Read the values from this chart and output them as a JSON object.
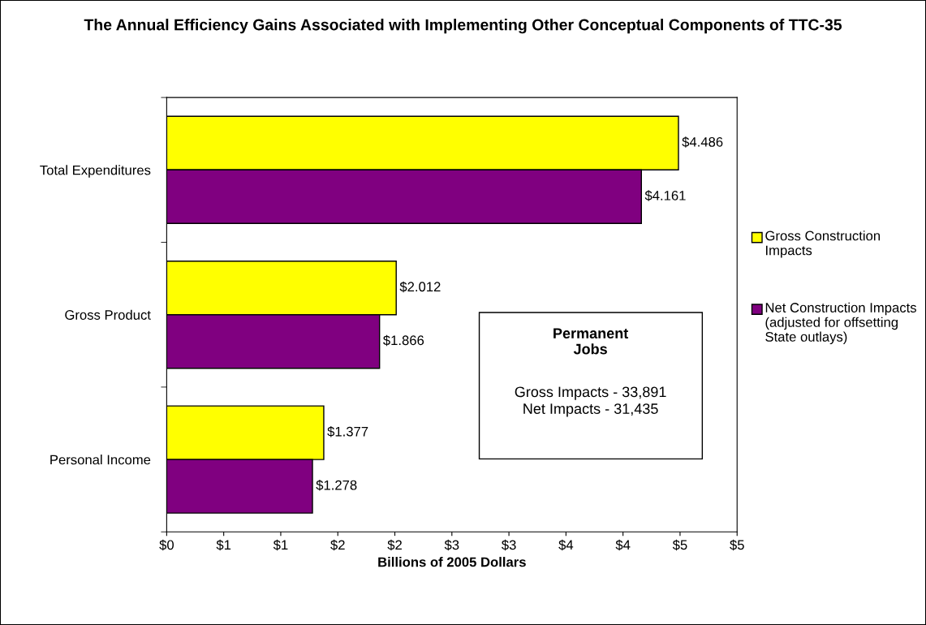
{
  "chart_data": {
    "type": "bar",
    "orientation": "horizontal",
    "title": "The Annual Efficiency Gains Associated with Implementing Other Conceptual Components of TTC-35",
    "xlabel": "Billions of 2005 Dollars",
    "categories": [
      "Total Expenditures",
      "Gross Product",
      "Personal Income"
    ],
    "series": [
      {
        "name": "Gross Construction Impacts",
        "color": "#ffff00",
        "values": [
          4.486,
          2.012,
          1.377
        ],
        "value_labels": [
          "$4.486",
          "$2.012",
          "$1.377"
        ]
      },
      {
        "name": "Net Construction Impacts (adjusted for offsetting State outlays)",
        "color": "#800080",
        "values": [
          4.161,
          1.866,
          1.278
        ],
        "value_labels": [
          "$4.161",
          "$1.866",
          "$1.278"
        ]
      }
    ],
    "xlim": [
      0,
      5
    ],
    "xticks": [
      {
        "value": 0,
        "label": "$0"
      },
      {
        "value": 0.5,
        "label": "$1"
      },
      {
        "value": 1,
        "label": "$1"
      },
      {
        "value": 1.5,
        "label": "$2"
      },
      {
        "value": 2,
        "label": "$2"
      },
      {
        "value": 2.5,
        "label": "$3"
      },
      {
        "value": 3,
        "label": "$3"
      },
      {
        "value": 3.5,
        "label": "$4"
      },
      {
        "value": 4,
        "label": "$4"
      },
      {
        "value": 4.5,
        "label": "$5"
      },
      {
        "value": 5,
        "label": "$5"
      }
    ],
    "annotations": [
      "Permanent Jobs",
      "Gross Impacts - 33,891",
      "Net Impacts - 31,435"
    ],
    "legend": "right",
    "grid": false
  }
}
